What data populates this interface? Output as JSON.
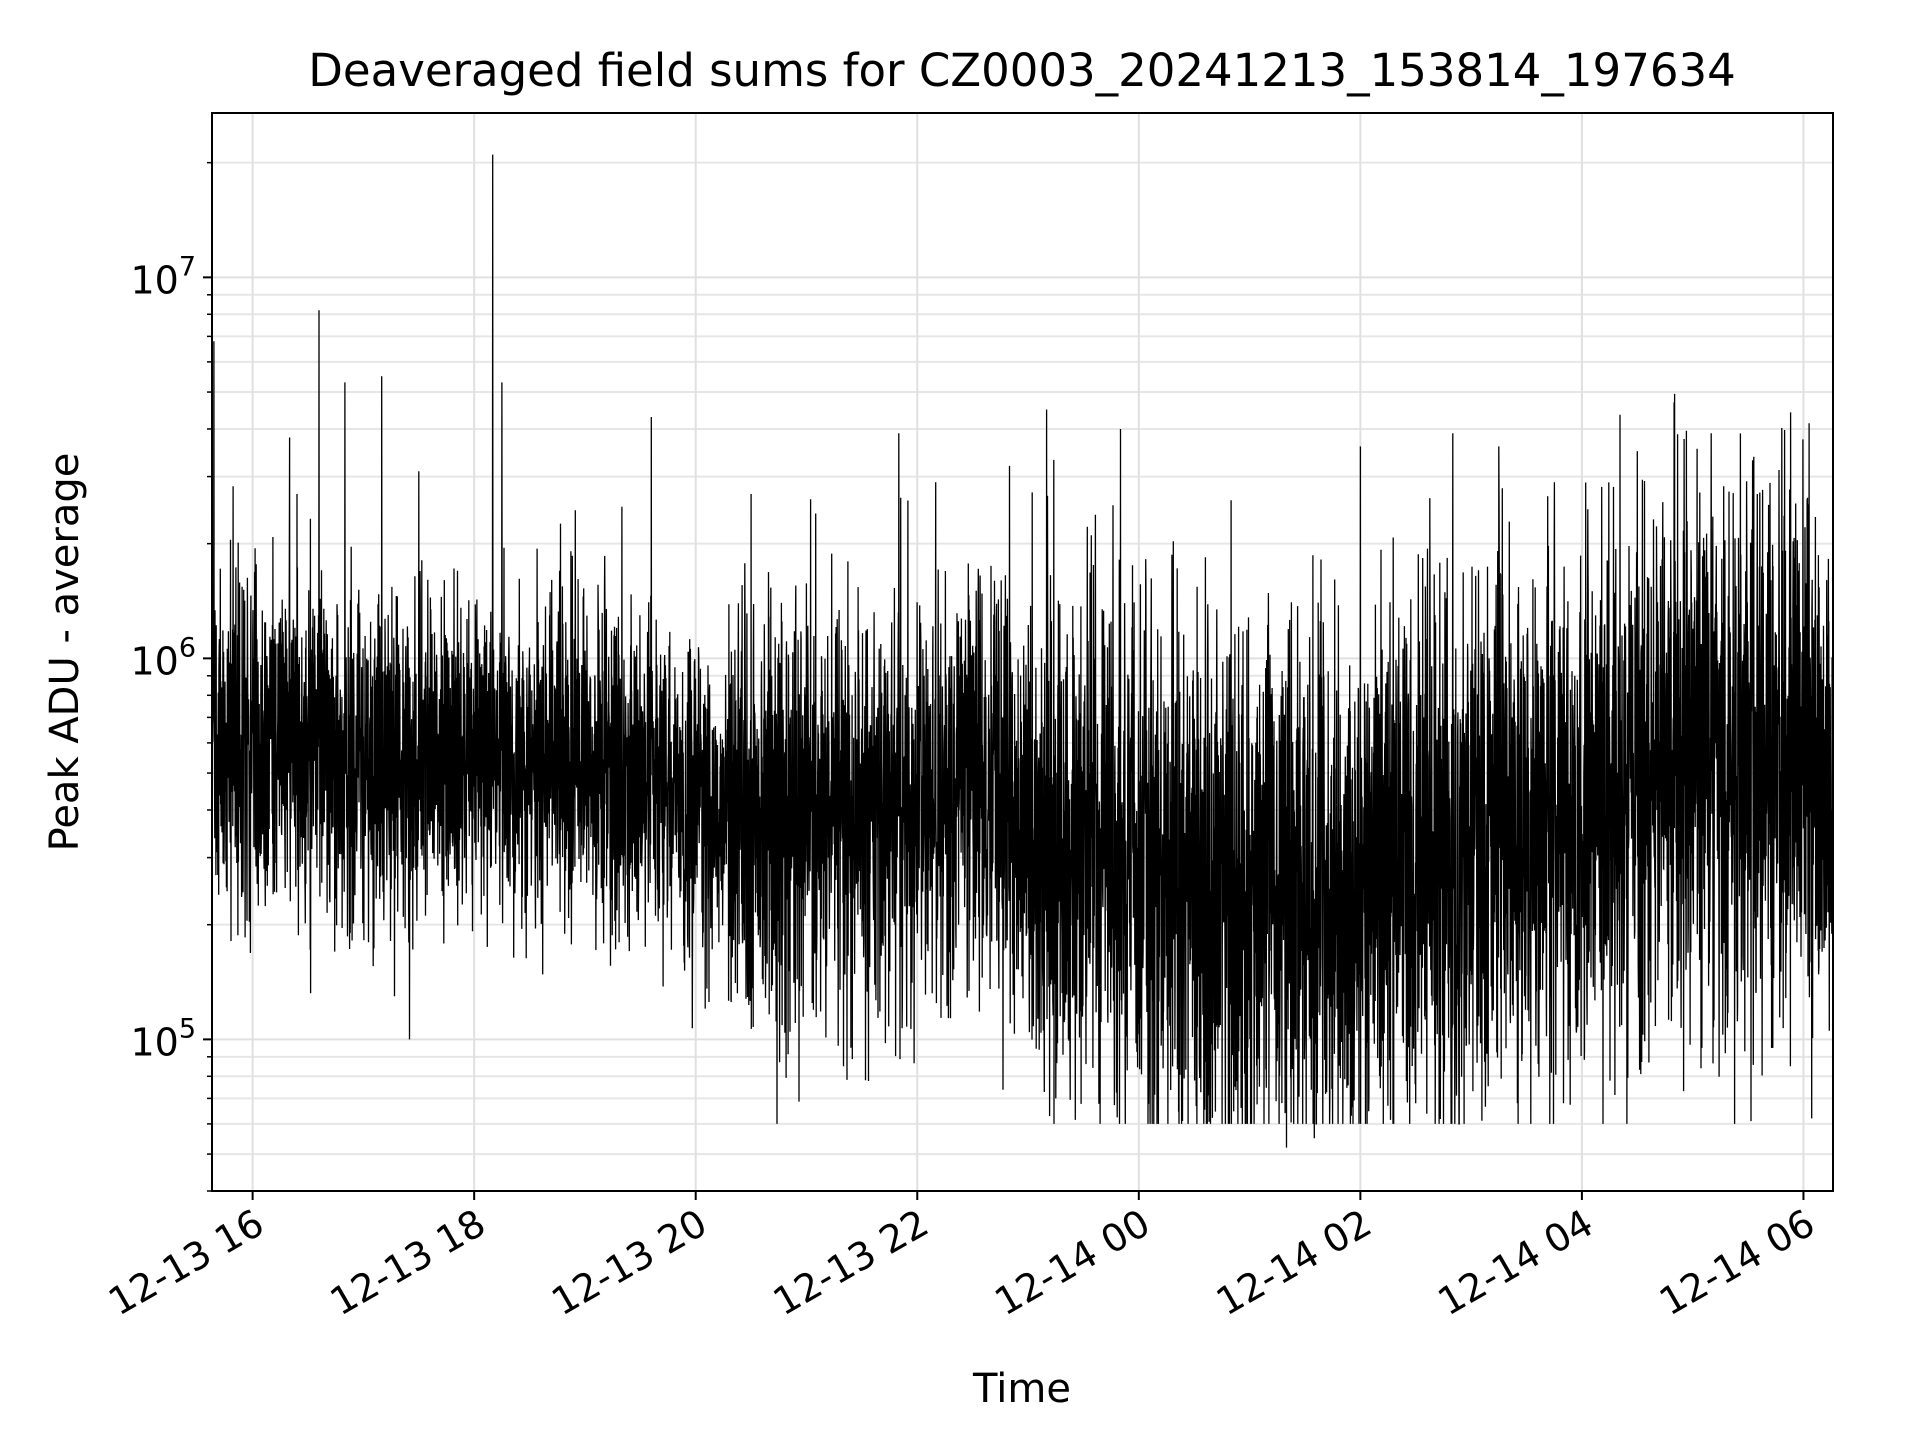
{
  "chart_data": {
    "type": "line",
    "title": "Deaveraged field sums for CZ0003_20241213_153814_197634",
    "xlabel": "Time",
    "ylabel": "Peak ADU - average",
    "y_scale": "log",
    "xlim": [
      "2024-12-13 15:38",
      "2024-12-14 06:16"
    ],
    "ylim": [
      40000,
      27000000
    ],
    "grid": true,
    "x_ticks": [
      {
        "t": "2024-12-13 16:00",
        "label": "12-13 16"
      },
      {
        "t": "2024-12-13 18:00",
        "label": "12-13 18"
      },
      {
        "t": "2024-12-13 20:00",
        "label": "12-13 20"
      },
      {
        "t": "2024-12-13 22:00",
        "label": "12-13 22"
      },
      {
        "t": "2024-12-14 00:00",
        "label": "12-14 00"
      },
      {
        "t": "2024-12-14 02:00",
        "label": "12-14 02"
      },
      {
        "t": "2024-12-14 04:00",
        "label": "12-14 04"
      },
      {
        "t": "2024-12-14 06:00",
        "label": "12-14 06"
      }
    ],
    "y_ticks": [
      {
        "v": 100000,
        "base": "10",
        "exp": "5"
      },
      {
        "v": 1000000,
        "base": "10",
        "exp": "6"
      },
      {
        "v": 10000000,
        "base": "10",
        "exp": "7"
      }
    ],
    "series": [
      {
        "color": "#000000",
        "profile": [
          {
            "t": "2024-12-13 15:38",
            "v": 650000
          },
          {
            "t": "2024-12-13 16:30",
            "v": 560000
          },
          {
            "t": "2024-12-13 17:30",
            "v": 520000
          },
          {
            "t": "2024-12-13 18:30",
            "v": 560000
          },
          {
            "t": "2024-12-13 19:30",
            "v": 500000
          },
          {
            "t": "2024-12-13 20:30",
            "v": 380000
          },
          {
            "t": "2024-12-13 21:30",
            "v": 370000
          },
          {
            "t": "2024-12-13 22:30",
            "v": 470000
          },
          {
            "t": "2024-12-13 23:00",
            "v": 380000
          },
          {
            "t": "2024-12-14 00:00",
            "v": 270000
          },
          {
            "t": "2024-12-14 01:00",
            "v": 230000
          },
          {
            "t": "2024-12-14 02:00",
            "v": 280000
          },
          {
            "t": "2024-12-14 03:00",
            "v": 280000
          },
          {
            "t": "2024-12-14 04:00",
            "v": 420000
          },
          {
            "t": "2024-12-14 05:00",
            "v": 580000
          },
          {
            "t": "2024-12-14 06:16",
            "v": 520000
          }
        ],
        "spikes": [
          {
            "t": "2024-12-13 15:39",
            "v": 6800000
          },
          {
            "t": "2024-12-13 16:20",
            "v": 3800000
          },
          {
            "t": "2024-12-13 16:24",
            "v": 2700000
          },
          {
            "t": "2024-12-13 16:36",
            "v": 8200000
          },
          {
            "t": "2024-12-13 16:50",
            "v": 5300000
          },
          {
            "t": "2024-12-13 17:10",
            "v": 5500000
          },
          {
            "t": "2024-12-13 17:25",
            "v": 100000
          },
          {
            "t": "2024-12-13 17:30",
            "v": 3100000
          },
          {
            "t": "2024-12-13 18:10",
            "v": 21000000
          },
          {
            "t": "2024-12-13 18:15",
            "v": 5300000
          },
          {
            "t": "2024-12-13 19:20",
            "v": 2500000
          },
          {
            "t": "2024-12-13 19:36",
            "v": 4300000
          },
          {
            "t": "2024-12-13 20:30",
            "v": 2700000
          },
          {
            "t": "2024-12-13 21:05",
            "v": 2400000
          },
          {
            "t": "2024-12-13 21:20",
            "v": 85000
          },
          {
            "t": "2024-12-13 21:50",
            "v": 3900000
          },
          {
            "t": "2024-12-13 22:10",
            "v": 2900000
          },
          {
            "t": "2024-12-13 22:50",
            "v": 3200000
          },
          {
            "t": "2024-12-13 23:10",
            "v": 4500000
          },
          {
            "t": "2024-12-13 23:15",
            "v": 70000
          },
          {
            "t": "2024-12-13 23:50",
            "v": 4000000
          },
          {
            "t": "2024-12-14 00:50",
            "v": 2600000
          },
          {
            "t": "2024-12-14 01:20",
            "v": 52000
          },
          {
            "t": "2024-12-14 01:35",
            "v": 55000
          },
          {
            "t": "2024-12-14 02:00",
            "v": 3600000
          },
          {
            "t": "2024-12-14 02:30",
            "v": 68000
          },
          {
            "t": "2024-12-14 02:50",
            "v": 3900000
          },
          {
            "t": "2024-12-14 03:15",
            "v": 3600000
          },
          {
            "t": "2024-12-14 03:25",
            "v": 68000
          },
          {
            "t": "2024-12-14 03:50",
            "v": 68000
          },
          {
            "t": "2024-12-14 04:30",
            "v": 3500000
          },
          {
            "t": "2024-12-14 04:50",
            "v": 4700000
          },
          {
            "t": "2024-12-14 05:05",
            "v": 95000
          },
          {
            "t": "2024-12-14 05:10",
            "v": 3900000
          },
          {
            "t": "2024-12-14 05:35",
            "v": 2700000
          }
        ]
      }
    ]
  }
}
